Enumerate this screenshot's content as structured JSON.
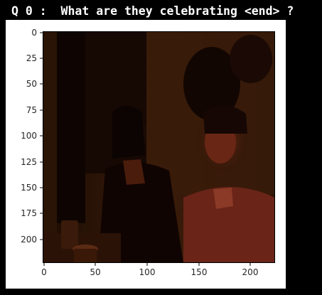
{
  "header": {
    "question": "Q 0 :  What are they celebrating <end> ?"
  },
  "plot": {
    "x_ticks": [
      "0",
      "50",
      "100",
      "150",
      "200"
    ],
    "x_tick_values": [
      0,
      50,
      100,
      150,
      200
    ],
    "y_ticks": [
      "0",
      "25",
      "50",
      "75",
      "100",
      "125",
      "150",
      "175",
      "200"
    ],
    "y_tick_values": [
      0,
      25,
      50,
      75,
      100,
      125,
      150,
      175,
      200
    ],
    "extent": [
      0,
      224
    ],
    "colors": {
      "background": "#000000",
      "panel": "#ffffff",
      "photo_dark": "#1a0a03",
      "photo_wall": "#3b1c0a",
      "photo_skin": "#6e2a15",
      "photo_shirt": "#7a2a1a",
      "axis": "#000000",
      "tick_text": "#262626"
    },
    "image_subject": "dark-photo-two-people"
  }
}
